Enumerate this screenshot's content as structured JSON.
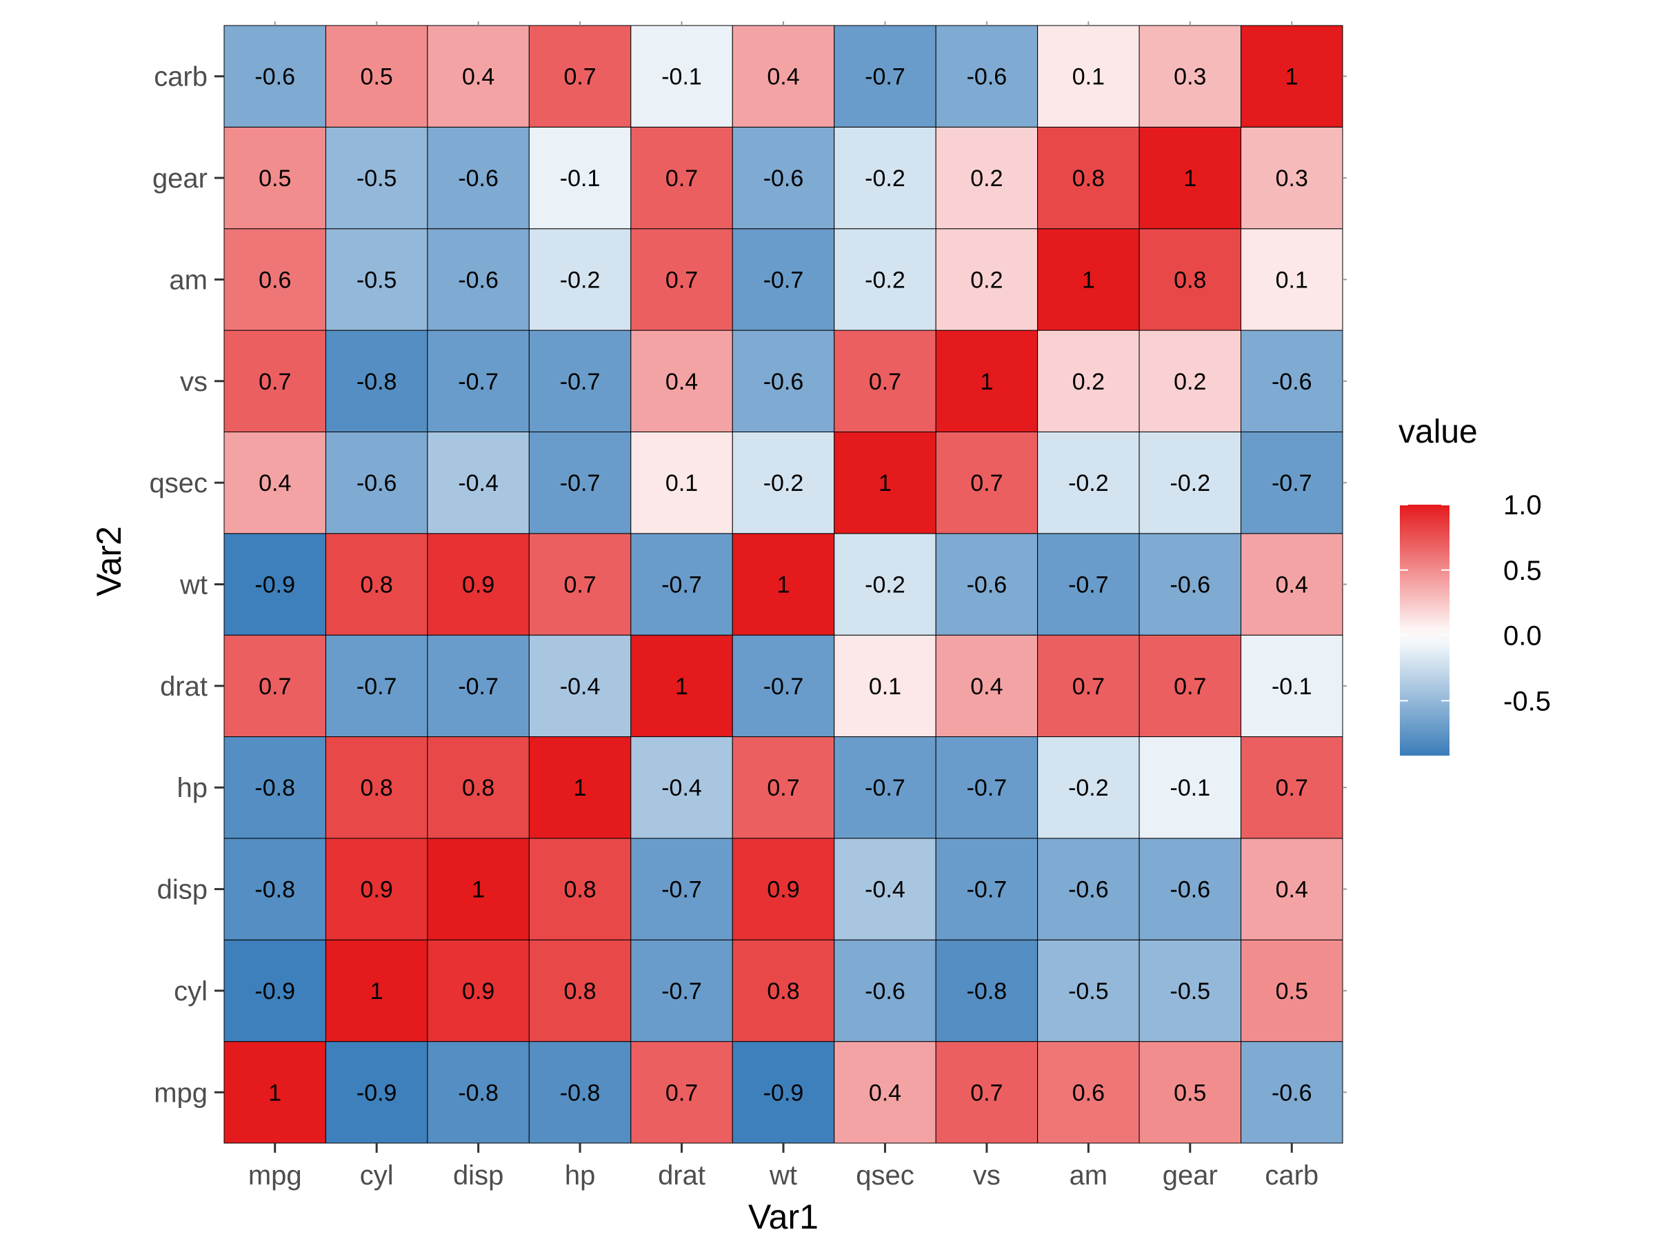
{
  "chart_data": {
    "type": "heatmap",
    "xlabel": "Var1",
    "ylabel": "Var2",
    "x_categories": [
      "mpg",
      "cyl",
      "disp",
      "hp",
      "drat",
      "wt",
      "qsec",
      "vs",
      "am",
      "gear",
      "carb"
    ],
    "y_categories": [
      "mpg",
      "cyl",
      "disp",
      "hp",
      "drat",
      "wt",
      "qsec",
      "vs",
      "am",
      "gear",
      "carb"
    ],
    "values": [
      [
        1,
        -0.9,
        -0.8,
        -0.8,
        0.7,
        -0.9,
        0.4,
        0.7,
        0.6,
        0.5,
        -0.6
      ],
      [
        -0.9,
        1,
        0.9,
        0.8,
        -0.7,
        0.8,
        -0.6,
        -0.8,
        -0.5,
        -0.5,
        0.5
      ],
      [
        -0.8,
        0.9,
        1,
        0.8,
        -0.7,
        0.9,
        -0.4,
        -0.7,
        -0.6,
        -0.6,
        0.4
      ],
      [
        -0.8,
        0.8,
        0.8,
        1,
        -0.4,
        0.7,
        -0.7,
        -0.7,
        -0.2,
        -0.1,
        0.7
      ],
      [
        0.7,
        -0.7,
        -0.7,
        -0.4,
        1,
        -0.7,
        0.1,
        0.4,
        0.7,
        0.7,
        -0.1
      ],
      [
        -0.9,
        0.8,
        0.9,
        0.7,
        -0.7,
        1,
        -0.2,
        -0.6,
        -0.7,
        -0.6,
        0.4
      ],
      [
        0.4,
        -0.6,
        -0.4,
        -0.7,
        0.1,
        -0.2,
        1,
        0.7,
        -0.2,
        -0.2,
        -0.7
      ],
      [
        0.7,
        -0.8,
        -0.7,
        -0.7,
        0.4,
        -0.6,
        0.7,
        1,
        0.2,
        0.2,
        -0.6
      ],
      [
        0.6,
        -0.5,
        -0.6,
        -0.2,
        0.7,
        -0.7,
        -0.2,
        0.2,
        1,
        0.8,
        0.1
      ],
      [
        0.5,
        -0.5,
        -0.6,
        -0.1,
        0.7,
        -0.6,
        -0.2,
        0.2,
        0.8,
        1,
        0.3
      ],
      [
        -0.6,
        0.5,
        0.4,
        0.7,
        -0.1,
        0.4,
        -0.7,
        -0.6,
        0.1,
        0.3,
        1
      ]
    ],
    "legend": {
      "title": "value",
      "ticks": [
        "1.0",
        "0.5",
        "0.0",
        "-0.5"
      ],
      "tick_values": [
        1.0,
        0.5,
        0.0,
        -0.5
      ],
      "range": [
        -0.92,
        1.0
      ],
      "placement": "right"
    },
    "colors": {
      "low": "#3a7db9",
      "mid": "#ffffff",
      "high": "#e41a1c",
      "cell_border": "#000000"
    }
  }
}
